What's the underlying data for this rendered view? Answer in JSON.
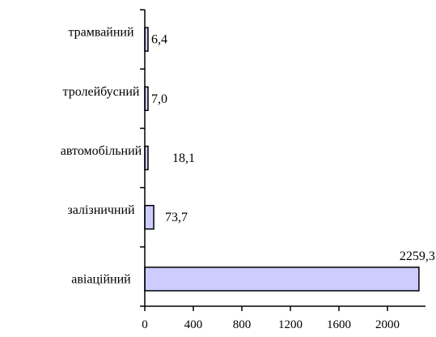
{
  "chart_data": {
    "type": "bar",
    "orientation": "horizontal",
    "categories": [
      "трамвайний",
      "тролейбусний",
      "автомобільний",
      "залізничний",
      "авіаційний"
    ],
    "values": [
      6.4,
      7.0,
      18.1,
      73.7,
      2259.3
    ],
    "value_labels": [
      "6,4",
      "7,0",
      "18,1",
      "73,7",
      "2259,3"
    ],
    "x_ticks": [
      0,
      400,
      800,
      1200,
      1600,
      2000
    ],
    "xlim": [
      0,
      2400
    ],
    "title": "",
    "xlabel": "",
    "ylabel": "",
    "grid": false,
    "legend": "none",
    "bar_color": "#ccccff",
    "bar_stroke": "#000000"
  }
}
